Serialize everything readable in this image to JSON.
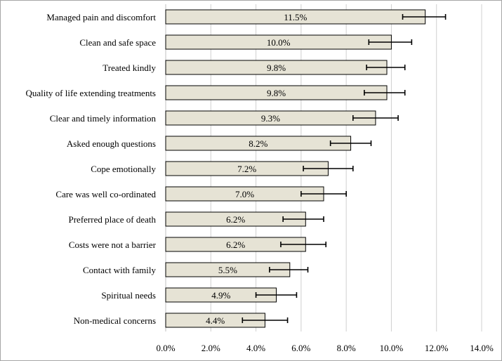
{
  "chart_data": {
    "type": "bar",
    "orientation": "horizontal",
    "categories": [
      "Managed pain and discomfort",
      "Clean and safe space",
      "Treated kindly",
      "Quality of life extending treatments",
      "Clear and timely information",
      "Asked enough questions",
      "Cope emotionally",
      "Care was well co-ordinated",
      "Preferred place of death",
      "Costs were not a barrier",
      "Contact with family",
      "Spiritual needs",
      "Non-medical concerns"
    ],
    "values": [
      11.5,
      10.0,
      9.8,
      9.8,
      9.3,
      8.2,
      7.2,
      7.0,
      6.2,
      6.2,
      5.5,
      4.9,
      4.4
    ],
    "data_labels": [
      "11.5%",
      "10.0%",
      "9.8%",
      "9.8%",
      "9.3%",
      "8.2%",
      "7.2%",
      "7.0%",
      "6.2%",
      "6.2%",
      "5.5%",
      "4.9%",
      "4.4%"
    ],
    "error_low": [
      10.5,
      9.0,
      8.9,
      8.8,
      8.3,
      7.3,
      6.1,
      6.0,
      5.2,
      5.1,
      4.6,
      4.0,
      3.4
    ],
    "error_high": [
      12.4,
      10.9,
      10.6,
      10.6,
      10.3,
      9.1,
      8.3,
      8.0,
      7.0,
      7.1,
      6.3,
      5.8,
      5.4
    ],
    "xlim": [
      0,
      14
    ],
    "x_ticks": [
      0,
      2,
      4,
      6,
      8,
      10,
      12,
      14
    ],
    "x_tick_labels": [
      "0.0%",
      "2.0%",
      "4.0%",
      "6.0%",
      "8.0%",
      "10.0%",
      "12.0%",
      "14.0%"
    ],
    "grid": "vertical",
    "legend": "none",
    "bar_color": "#e6e3d5",
    "bar_edge_color": "#000000",
    "grid_color": "#d0d0d0"
  }
}
